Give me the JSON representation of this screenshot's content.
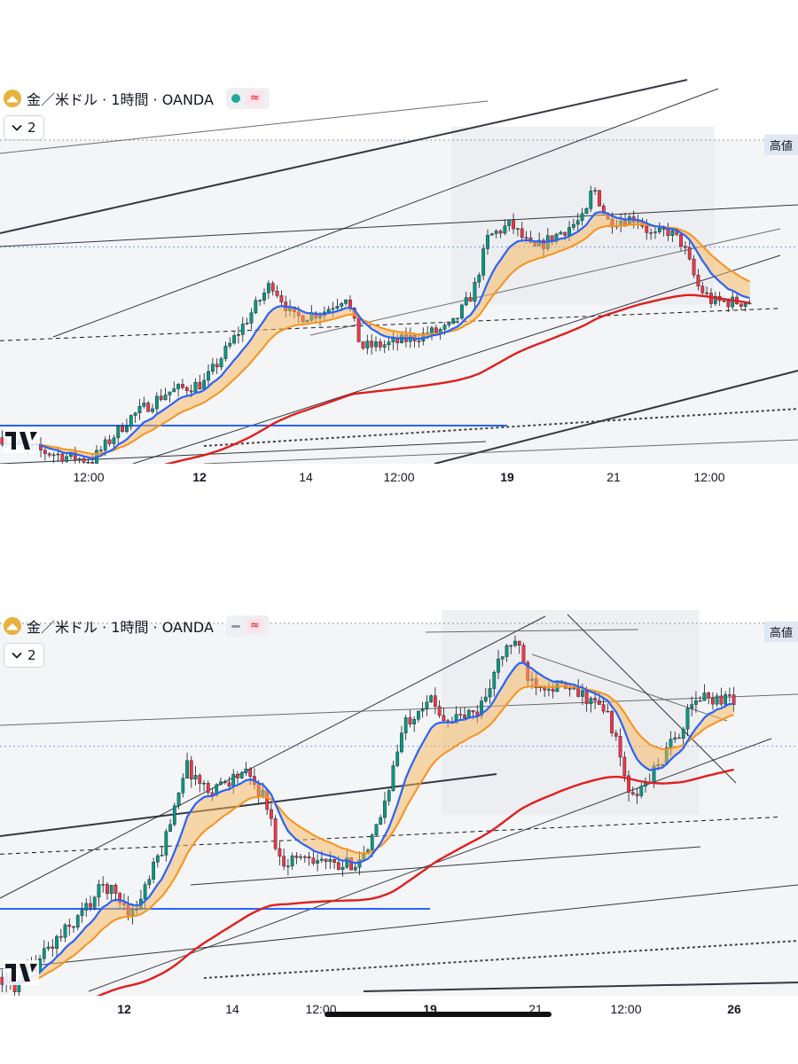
{
  "panels": [
    {
      "symbol": "金／米ドル · 1時間 · OANDA",
      "status": "green-dot",
      "indicator_count": "2",
      "high_label": "高値",
      "time_labels": [
        {
          "text": "12:00",
          "bold": false
        },
        {
          "text": "12",
          "bold": true
        },
        {
          "text": "14",
          "bold": false
        },
        {
          "text": "12:00",
          "bold": false
        },
        {
          "text": "19",
          "bold": true
        },
        {
          "text": "21",
          "bold": false
        },
        {
          "text": "12:00",
          "bold": false
        }
      ]
    },
    {
      "symbol": "金／米ドル · 1時間 · OANDA",
      "status": "gray-dash",
      "indicator_count": "2",
      "high_label": "高値",
      "time_labels": [
        {
          "text": "12",
          "bold": true
        },
        {
          "text": "14",
          "bold": false
        },
        {
          "text": "12:00",
          "bold": false
        },
        {
          "text": "19",
          "bold": true
        },
        {
          "text": "21",
          "bold": false
        },
        {
          "text": "12:00",
          "bold": false
        },
        {
          "text": "26",
          "bold": true
        }
      ]
    }
  ],
  "icons": {
    "brand": "gold-coin-icon",
    "wave": "wave-icon",
    "chevron": "chevron-down-icon",
    "watermark": "tradingview-logo",
    "wave_glyph": "≈"
  },
  "colors": {
    "bull": "#089981",
    "bear": "#f23645",
    "fast_ma": "#2962ff",
    "slow_ma": "#f7931a",
    "cloud": "#f7b55a",
    "long_ma": "#e01e1e",
    "support": "#2962ff",
    "trend": "#131722"
  },
  "chart_data": [
    {
      "type": "candlestick",
      "title": "金／米ドル · 1時間 · OANDA",
      "x_tick_labels": [
        "12:00",
        "12",
        "14",
        "12:00",
        "19",
        "21",
        "12:00"
      ],
      "price_path": [
        [
          0,
          0.08
        ],
        [
          0.03,
          0.05
        ],
        [
          0.09,
          0.02
        ],
        [
          0.12,
          0.01
        ],
        [
          0.17,
          0.14
        ],
        [
          0.22,
          0.22
        ],
        [
          0.27,
          0.25
        ],
        [
          0.32,
          0.42
        ],
        [
          0.36,
          0.56
        ],
        [
          0.39,
          0.45
        ],
        [
          0.43,
          0.47
        ],
        [
          0.46,
          0.52
        ],
        [
          0.48,
          0.36
        ],
        [
          0.52,
          0.37
        ],
        [
          0.55,
          0.39
        ],
        [
          0.6,
          0.42
        ],
        [
          0.63,
          0.53
        ],
        [
          0.65,
          0.7
        ],
        [
          0.68,
          0.74
        ],
        [
          0.71,
          0.66
        ],
        [
          0.75,
          0.72
        ],
        [
          0.78,
          0.76
        ],
        [
          0.79,
          0.86
        ],
        [
          0.81,
          0.75
        ],
        [
          0.85,
          0.76
        ],
        [
          0.87,
          0.7
        ],
        [
          0.89,
          0.72
        ],
        [
          0.91,
          0.68
        ],
        [
          0.93,
          0.55
        ],
        [
          0.95,
          0.5
        ]
      ],
      "series": [
        "fast moving average (blue)",
        "slow moving average (orange)",
        "long moving average (red)"
      ]
    },
    {
      "type": "candlestick",
      "title": "金／米ドル · 1時間 · OANDA",
      "x_tick_labels": [
        "12",
        "14",
        "12:00",
        "19",
        "21",
        "12:00",
        "26"
      ],
      "price_path": [
        [
          0,
          0.05
        ],
        [
          0.02,
          0.02
        ],
        [
          0.06,
          0.12
        ],
        [
          0.1,
          0.2
        ],
        [
          0.14,
          0.3
        ],
        [
          0.18,
          0.22
        ],
        [
          0.22,
          0.4
        ],
        [
          0.25,
          0.62
        ],
        [
          0.28,
          0.55
        ],
        [
          0.33,
          0.6
        ],
        [
          0.36,
          0.53
        ],
        [
          0.38,
          0.36
        ],
        [
          0.42,
          0.38
        ],
        [
          0.46,
          0.34
        ],
        [
          0.5,
          0.38
        ],
        [
          0.52,
          0.5
        ],
        [
          0.55,
          0.73
        ],
        [
          0.58,
          0.8
        ],
        [
          0.61,
          0.74
        ],
        [
          0.65,
          0.76
        ],
        [
          0.68,
          0.9
        ],
        [
          0.7,
          0.96
        ],
        [
          0.72,
          0.85
        ],
        [
          0.76,
          0.83
        ],
        [
          0.8,
          0.8
        ],
        [
          0.83,
          0.75
        ],
        [
          0.86,
          0.52
        ],
        [
          0.89,
          0.6
        ],
        [
          0.92,
          0.69
        ],
        [
          0.95,
          0.8
        ]
      ],
      "series": [
        "fast moving average (blue)",
        "slow moving average (orange)",
        "long moving average (red)"
      ]
    }
  ]
}
